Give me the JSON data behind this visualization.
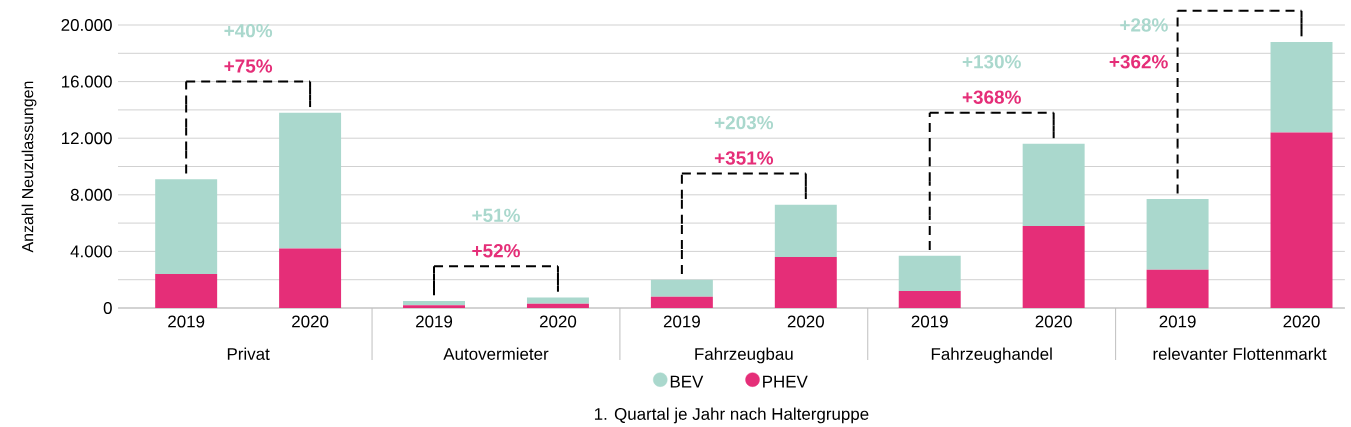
{
  "chart_data": {
    "type": "bar",
    "stacked": true,
    "categories": [
      "2019",
      "2020",
      "2019",
      "2020",
      "2019",
      "2020",
      "2019",
      "2020",
      "2019",
      "2020"
    ],
    "series": [
      {
        "name": "PHEV",
        "color": "#e52e78",
        "values": [
          2400,
          4200,
          200,
          300,
          800,
          3600,
          1200,
          5800,
          2700,
          12400
        ]
      },
      {
        "name": "BEV",
        "color": "#aad8cd",
        "values": [
          6700,
          9600,
          300,
          450,
          1200,
          3700,
          2500,
          5800,
          5000,
          6400
        ]
      }
    ],
    "ylabel": "Anzahl Neuzulassungen",
    "xlabel": "1. Quartal je Jahr nach Haltergruppe",
    "ylim": [
      0,
      20000
    ],
    "yticks": [
      0,
      {
        "value": 2000,
        "label": null
      },
      {
        "value": 4000,
        "label": "4.000"
      },
      {
        "value": 6000,
        "label": null
      },
      {
        "value": 8000,
        "label": "8.000"
      },
      {
        "value": 10000,
        "label": null
      },
      {
        "value": 12000,
        "label": "12.000"
      },
      {
        "value": 14000,
        "label": null
      },
      {
        "value": 16000,
        "label": "16.000"
      },
      {
        "value": 18000,
        "label": null
      },
      {
        "value": 20000,
        "label": "20.000"
      }
    ],
    "grid": "y",
    "legend": "bottom",
    "annotations": [
      "Privat",
      "Autovermieter",
      "Fahrzeugbau",
      "Fahrzeughandel",
      "relevanter Flottenmarkt",
      "+75%",
      "+40%",
      "+52%",
      "+51%",
      "+351%",
      "+203%",
      "+368%",
      "+130%",
      "+362%",
      "+28%"
    ]
  }
}
